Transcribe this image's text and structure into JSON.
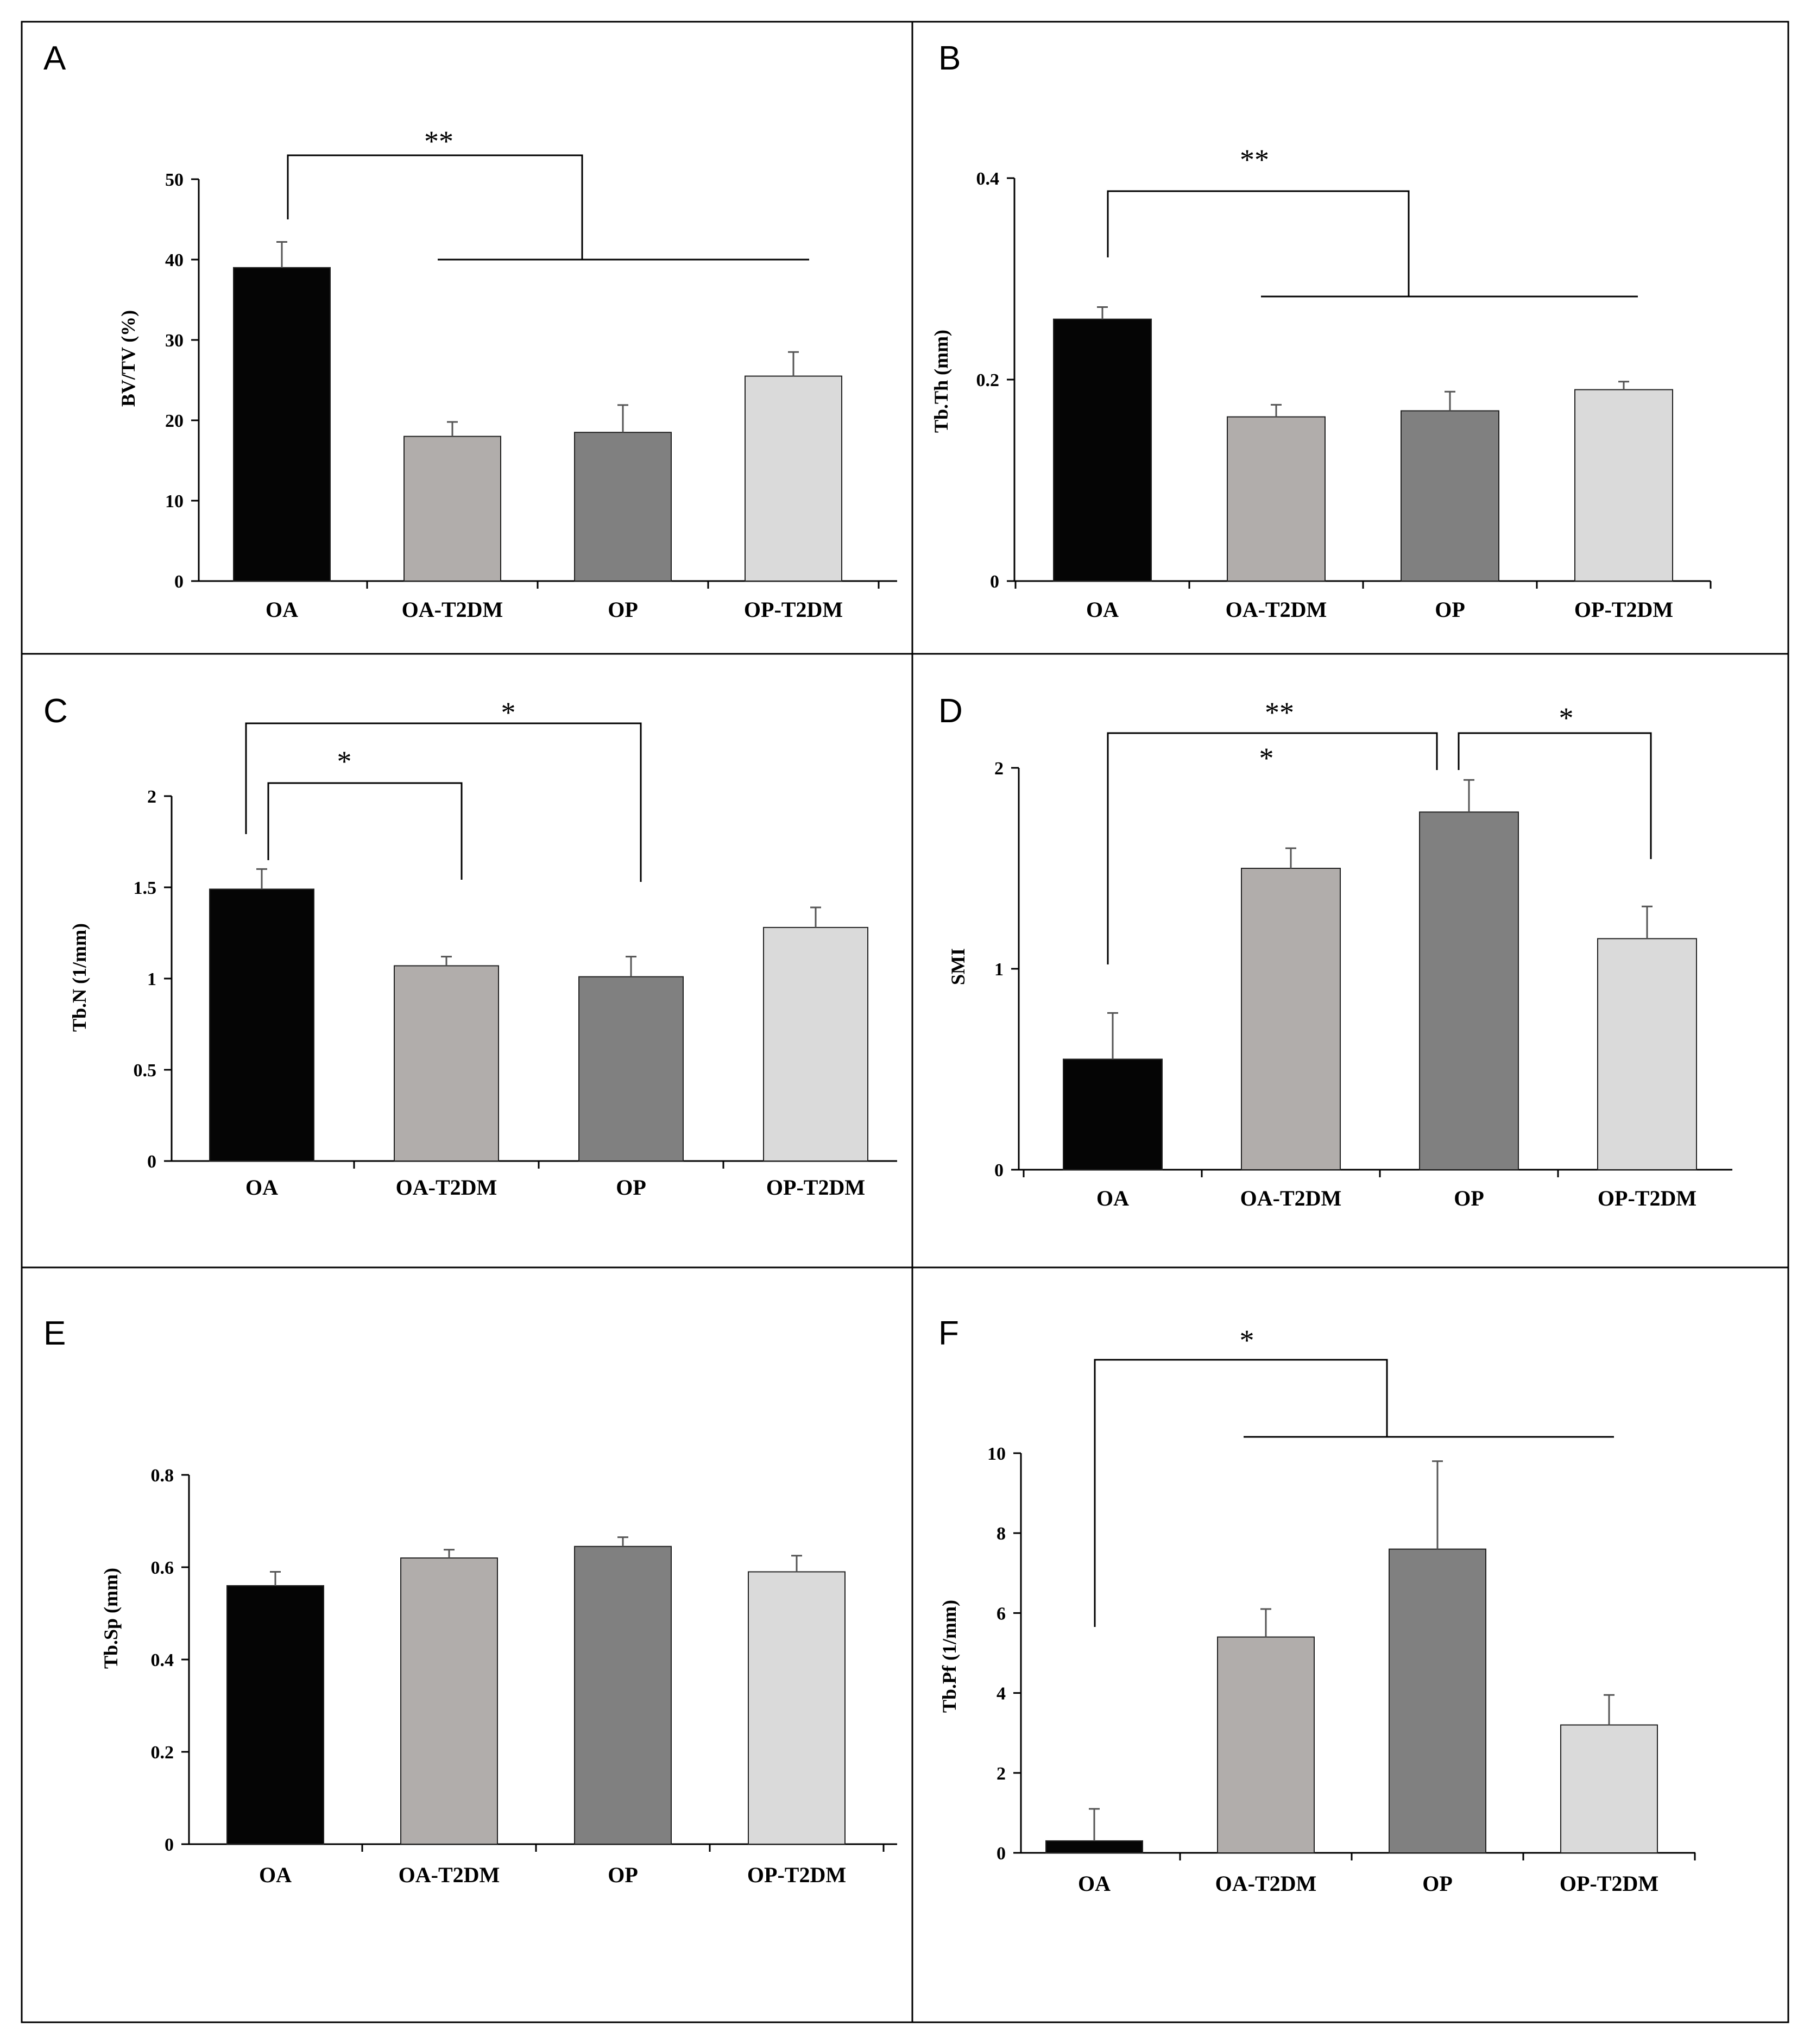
{
  "figure": {
    "panels": [
      "A",
      "B",
      "C",
      "D",
      "E",
      "F"
    ],
    "categories": [
      "OA",
      "OA-T2DM",
      "OP",
      "OP-T2DM"
    ],
    "bar_colors": [
      "#050505",
      "#b1adab",
      "#808080",
      "#dadada"
    ],
    "frame_color": "#000000"
  },
  "chart_data": [
    {
      "panel": "A",
      "type": "bar",
      "categories": [
        "OA",
        "OA-T2DM",
        "OP",
        "OP-T2DM"
      ],
      "values": [
        39,
        18,
        18.5,
        25.5
      ],
      "errors": [
        3.2,
        1.8,
        3.4,
        3.0
      ],
      "ylabel": "BV/TV (%)",
      "ylim": [
        0,
        50
      ],
      "yticks": [
        0,
        10,
        20,
        30,
        40,
        50
      ],
      "ytick_labels": [
        "0",
        "10",
        "20",
        "30",
        "40",
        "50"
      ],
      "significance": [
        {
          "label": "**",
          "from": "OA",
          "to": "OA-T2DM, OP, OP-T2DM"
        }
      ]
    },
    {
      "panel": "B",
      "type": "bar",
      "categories": [
        "OA",
        "OA-T2DM",
        "OP",
        "OP-T2DM"
      ],
      "values": [
        0.26,
        0.163,
        0.169,
        0.19
      ],
      "errors": [
        0.012,
        0.012,
        0.019,
        0.008
      ],
      "ylabel": "Tb.Th (mm)",
      "ylim": [
        0,
        0.4
      ],
      "yticks": [
        0,
        0.2,
        0.4
      ],
      "ytick_labels": [
        "0",
        "0.2",
        "0.4"
      ],
      "significance": [
        {
          "label": "**",
          "from": "OA",
          "to": "OA-T2DM, OP, OP-T2DM"
        }
      ]
    },
    {
      "panel": "C",
      "type": "bar",
      "categories": [
        "OA",
        "OA-T2DM",
        "OP",
        "OP-T2DM"
      ],
      "values": [
        1.49,
        1.07,
        1.01,
        1.28
      ],
      "errors": [
        0.11,
        0.05,
        0.11,
        0.11
      ],
      "ylabel": "Tb.N (1/mm)",
      "ylim": [
        0,
        2
      ],
      "yticks": [
        0,
        0.5,
        1,
        1.5,
        2
      ],
      "ytick_labels": [
        "0",
        "0.5",
        "1",
        "1.5",
        "2"
      ],
      "significance": [
        {
          "label": "*",
          "from": "OA",
          "to": "OA-T2DM"
        },
        {
          "label": "*",
          "from": "OA",
          "to": "OP"
        }
      ]
    },
    {
      "panel": "D",
      "type": "bar",
      "categories": [
        "OA",
        "OA-T2DM",
        "OP",
        "OP-T2DM"
      ],
      "values": [
        0.55,
        1.5,
        1.78,
        1.15
      ],
      "errors": [
        0.23,
        0.1,
        0.16,
        0.16
      ],
      "ylabel": "SMI",
      "ylim": [
        0,
        2
      ],
      "yticks": [
        0,
        1,
        2
      ],
      "ytick_labels": [
        "0",
        "1",
        "2"
      ],
      "significance": [
        {
          "label": "**",
          "from": "OA",
          "to": "OP"
        },
        {
          "label": "*",
          "from": "OP",
          "to": "OP-T2DM"
        },
        {
          "label": "*",
          "from": "OA-T2DM",
          "to": ""
        }
      ]
    },
    {
      "panel": "E",
      "type": "bar",
      "categories": [
        "OA",
        "OA-T2DM",
        "OP",
        "OP-T2DM"
      ],
      "values": [
        0.56,
        0.62,
        0.645,
        0.59
      ],
      "errors": [
        0.03,
        0.018,
        0.02,
        0.035
      ],
      "ylabel": "Tb.Sp (mm)",
      "ylim": [
        0,
        0.8
      ],
      "yticks": [
        0,
        0.2,
        0.4,
        0.6,
        0.8
      ],
      "ytick_labels": [
        "0",
        "0.2",
        "0.4",
        "0.6",
        "0.8"
      ],
      "significance": []
    },
    {
      "panel": "F",
      "type": "bar",
      "categories": [
        "OA",
        "OA-T2DM",
        "OP",
        "OP-T2DM"
      ],
      "values": [
        0.3,
        5.4,
        7.6,
        3.2
      ],
      "errors": [
        0.8,
        0.7,
        2.2,
        0.75
      ],
      "ylabel": "Tb.Pf (1/mm)",
      "ylim": [
        0,
        10
      ],
      "yticks": [
        0,
        2,
        4,
        6,
        8,
        10
      ],
      "ytick_labels": [
        "0",
        "2",
        "4",
        "6",
        "8",
        "10"
      ],
      "significance": [
        {
          "label": "*",
          "from": "OA",
          "to": "OA-T2DM, OP, OP-T2DM"
        }
      ]
    }
  ]
}
